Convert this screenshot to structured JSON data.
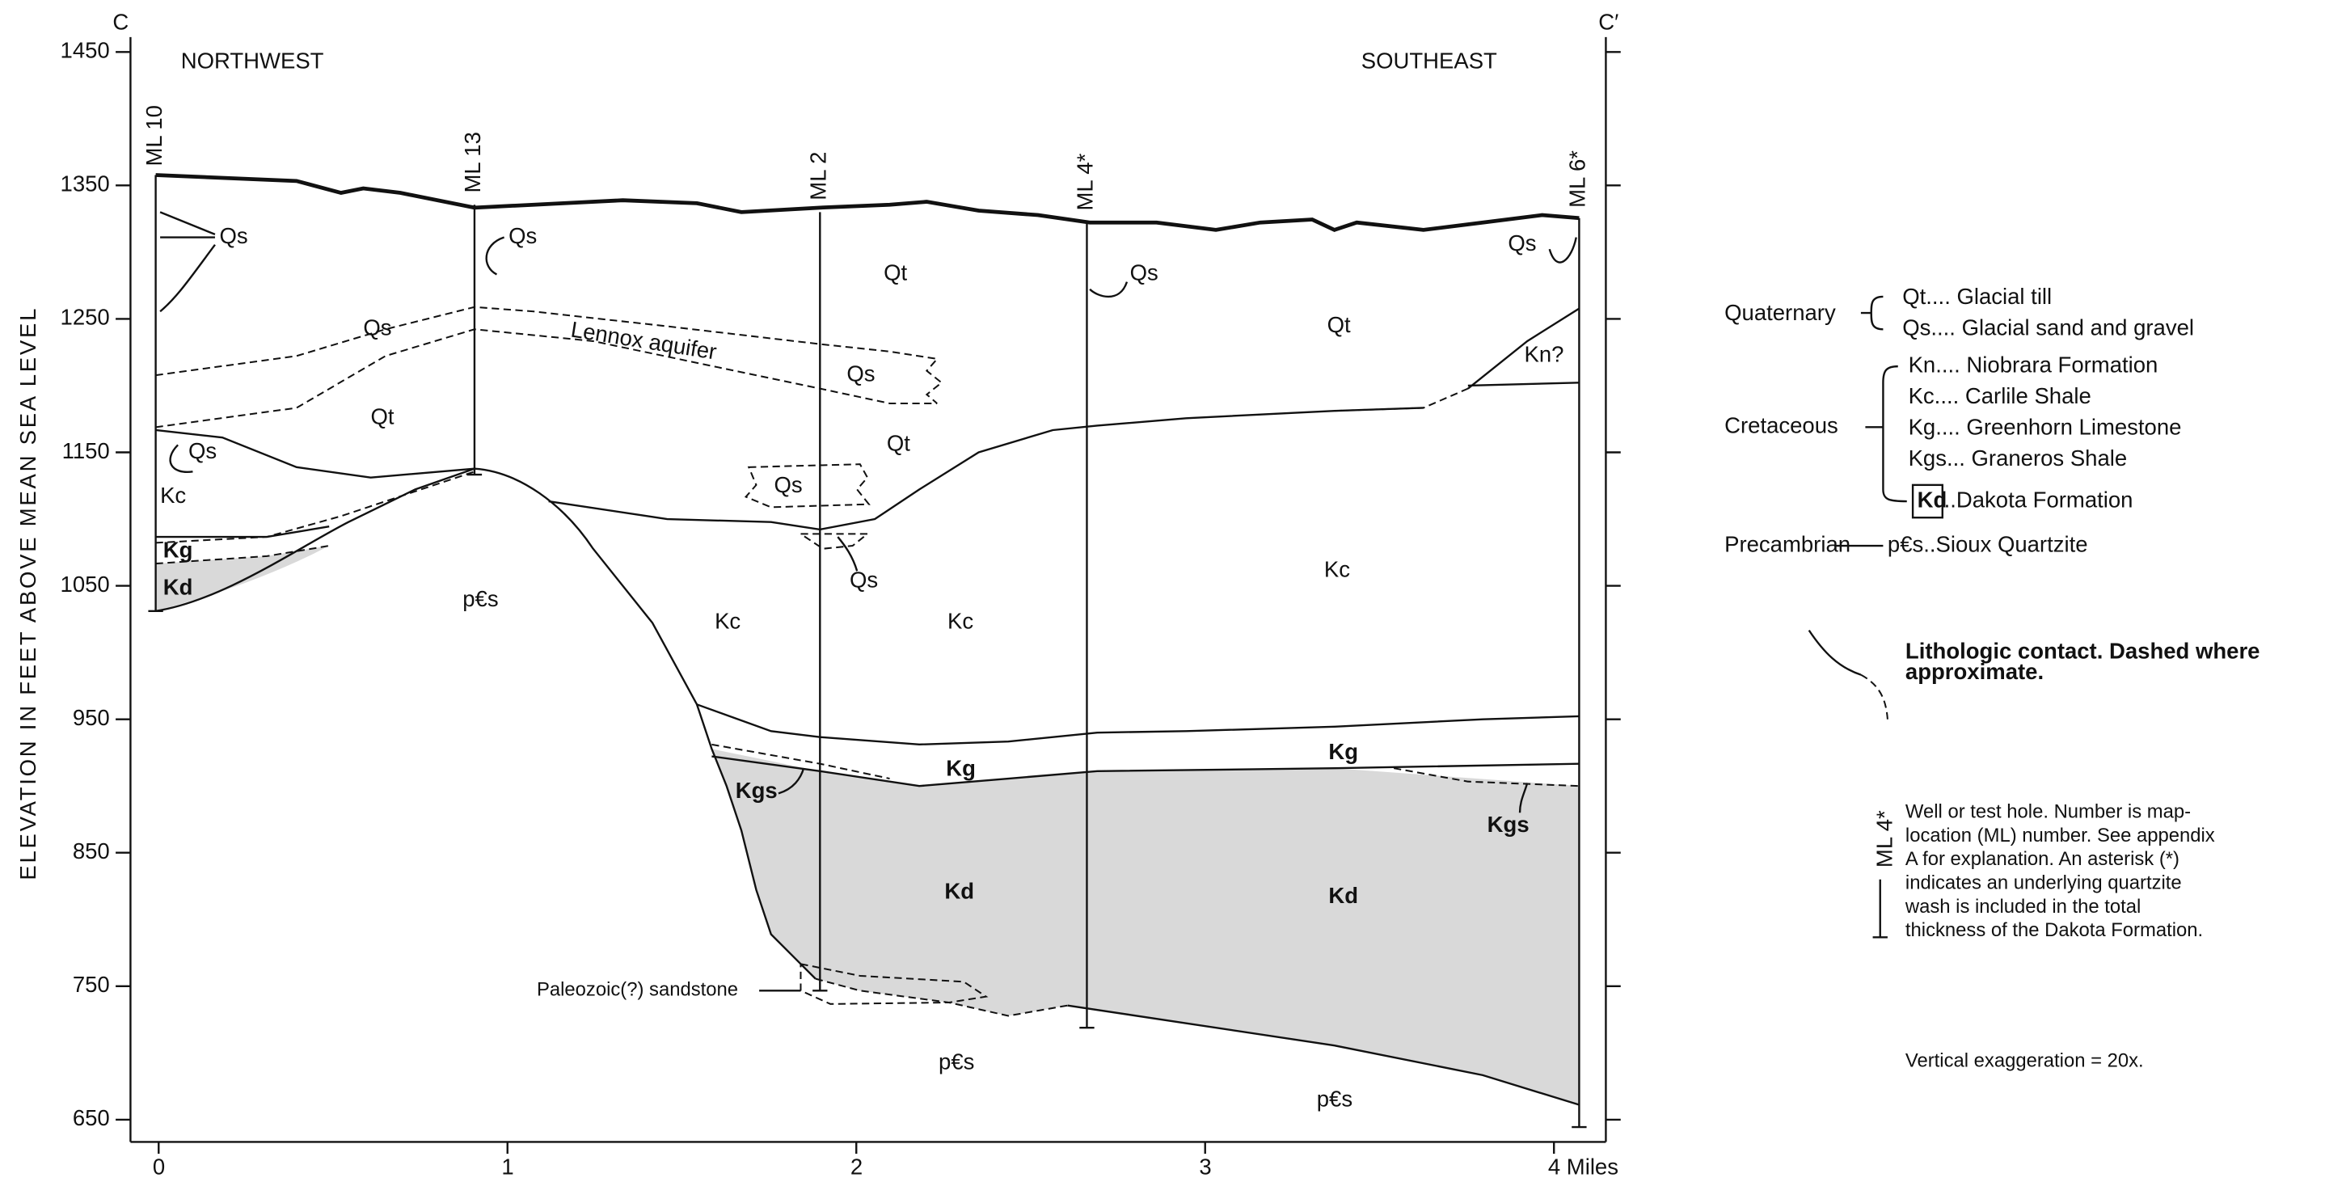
{
  "section": {
    "start_label": "C",
    "end_label": "C′",
    "left_direction": "NORTHWEST",
    "right_direction": "SOUTHEAST",
    "y_axis_title": "ELEVATION IN FEET ABOVE MEAN SEA LEVEL",
    "y_ticks": [
      1450,
      1350,
      1250,
      1150,
      1050,
      950,
      850,
      750,
      650
    ],
    "x_ticks": [
      "0",
      "1",
      "2",
      "3",
      "4 Miles"
    ],
    "wells": [
      "ML 10",
      "ML 13",
      "ML 2",
      "ML 4*",
      "ML 6*"
    ],
    "unit_labels": [
      "Qs",
      "Qs",
      "Qt",
      "Qs",
      "Qs",
      "Qt",
      "Qs",
      "Lennox aquifer",
      "Qs",
      "Kn?",
      "Qt",
      "Qt",
      "Qs",
      "Kc",
      "Qs",
      "Kg",
      "Kd",
      "Qs",
      "Kc",
      "p€s",
      "Kc",
      "Kc",
      "Kg",
      "Kg",
      "Kgs",
      "Kgs",
      "Kd",
      "Kd",
      "Paleozoic(?) sandstone",
      "p€s",
      "p€s"
    ]
  },
  "legend": {
    "quaternary": {
      "label": "Quaternary",
      "items": [
        "Qt.... Glacial till",
        "Qs.... Glacial sand and gravel"
      ]
    },
    "cretaceous": {
      "label": "Cretaceous",
      "items": [
        "Kn.... Niobrara Formation",
        "Kc.... Carlile Shale",
        "Kg.... Greenhorn Limestone",
        "Kgs... Graneros Shale"
      ],
      "boxed_symbol": "Kd",
      "boxed_text": "..Dakota Formation"
    },
    "precambrian": {
      "label": "Precambrian",
      "item": "p€s..Sioux Quartzite"
    },
    "contact": [
      "Lithologic contact. Dashed where",
      "approximate."
    ],
    "well_symbol": "ML 4*",
    "well_text": [
      "Well or test hole. Number is map-",
      "location (ML) number. See appendix",
      "A for explanation. An asterisk (*)",
      "indicates an underlying quartzite",
      "wash is included in the total",
      "thickness of the Dakota Formation."
    ],
    "exaggeration": "Vertical exaggeration = 20x."
  }
}
